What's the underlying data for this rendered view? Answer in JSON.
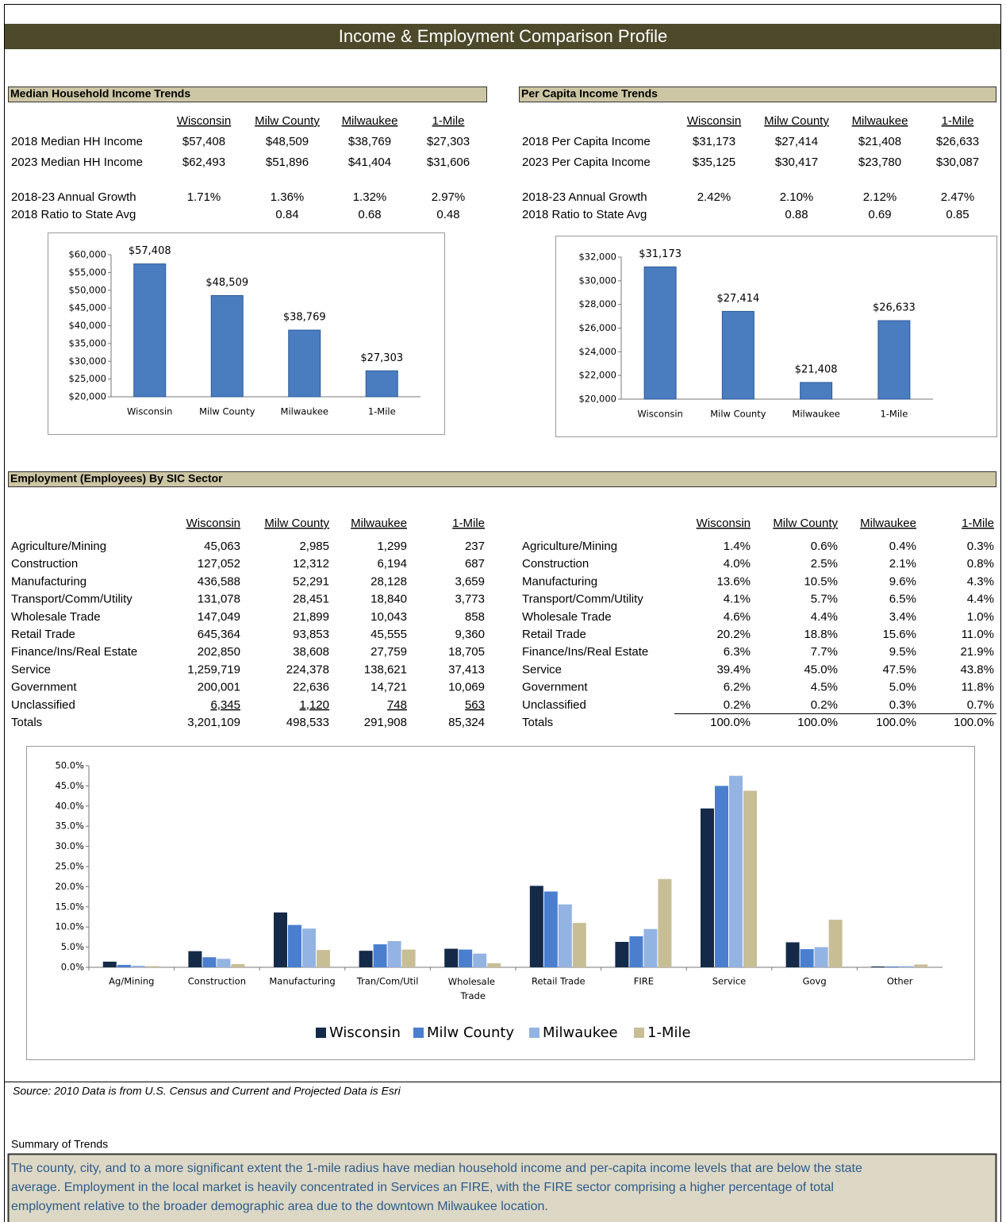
{
  "header": {
    "title": "Income & Employment Comparison Profile"
  },
  "median_hh": {
    "title": "Median Household Income Trends",
    "columns": [
      "Wisconsin",
      "Milw County",
      "Milwaukee",
      "1-Mile"
    ],
    "rows": [
      [
        "2018 Median HH Income",
        "$57,408",
        "$48,509",
        "$38,769",
        "$27,303"
      ],
      [
        "2023 Median HH Income",
        "$62,493",
        "$51,896",
        "$41,404",
        "$31,606"
      ],
      [
        "2018-23 Annual Growth",
        "1.71%",
        "1.36%",
        "1.32%",
        "2.97%"
      ],
      [
        "2018 Ratio to State Avg",
        null,
        "0.84",
        "0.68",
        "0.48"
      ]
    ]
  },
  "per_capita": {
    "title": "Per Capita Income Trends",
    "columns": [
      "Wisconsin",
      "Milw County",
      "Milwaukee",
      "1-Mile"
    ],
    "rows": [
      [
        "2018 Per Capita Income",
        "$31,173",
        "$27,414",
        "$21,408",
        "$26,633"
      ],
      [
        "2023 Per Capita Income",
        "$35,125",
        "$30,417",
        "$23,780",
        "$30,087"
      ],
      [
        "2018-23 Annual Growth",
        "2.42%",
        "2.10%",
        "2.12%",
        "2.47%"
      ],
      [
        "2018 Ratio to State Avg",
        null,
        "0.88",
        "0.69",
        "0.85"
      ]
    ]
  },
  "employment": {
    "title": "Employment (Employees) By SIC Sector",
    "columns": [
      "Wisconsin",
      "Milw County",
      "Milwaukee",
      "1-Mile"
    ],
    "counts": [
      [
        "Agriculture/Mining",
        "45,063",
        "2,985",
        "1,299",
        "237"
      ],
      [
        "Construction",
        "127,052",
        "12,312",
        "6,194",
        "687"
      ],
      [
        "Manufacturing",
        "436,588",
        "52,291",
        "28,128",
        "3,659"
      ],
      [
        "Transport/Comm/Utility",
        "131,078",
        "28,451",
        "18,840",
        "3,773"
      ],
      [
        "Wholesale Trade",
        "147,049",
        "21,899",
        "10,043",
        "858"
      ],
      [
        "Retail Trade",
        "645,364",
        "93,853",
        "45,555",
        "9,360"
      ],
      [
        "Finance/Ins/Real Estate",
        "202,850",
        "38,608",
        "27,759",
        "18,705"
      ],
      [
        "Service",
        "1,259,719",
        "224,378",
        "138,621",
        "37,413"
      ],
      [
        "Government",
        "200,001",
        "22,636",
        "14,721",
        "10,069"
      ],
      [
        "Unclassified",
        "6,345",
        "1,120",
        "748",
        "563"
      ],
      [
        "Totals",
        "3,201,109",
        "498,533",
        "291,908",
        "85,324"
      ]
    ],
    "shares": [
      [
        "Agriculture/Mining",
        "1.4%",
        "0.6%",
        "0.4%",
        "0.3%"
      ],
      [
        "Construction",
        "4.0%",
        "2.5%",
        "2.1%",
        "0.8%"
      ],
      [
        "Manufacturing",
        "13.6%",
        "10.5%",
        "9.6%",
        "4.3%"
      ],
      [
        "Transport/Comm/Utility",
        "4.1%",
        "5.7%",
        "6.5%",
        "4.4%"
      ],
      [
        "Wholesale Trade",
        "4.6%",
        "4.4%",
        "3.4%",
        "1.0%"
      ],
      [
        "Retail Trade",
        "20.2%",
        "18.8%",
        "15.6%",
        "11.0%"
      ],
      [
        "Finance/Ins/Real Estate",
        "6.3%",
        "7.7%",
        "9.5%",
        "21.9%"
      ],
      [
        "Service",
        "39.4%",
        "45.0%",
        "47.5%",
        "43.8%"
      ],
      [
        "Government",
        "6.2%",
        "4.5%",
        "5.0%",
        "11.8%"
      ],
      [
        "Unclassified",
        "0.2%",
        "0.2%",
        "0.3%",
        "0.7%"
      ],
      [
        "Totals",
        "100.0%",
        "100.0%",
        "100.0%",
        "100.0%"
      ]
    ]
  },
  "chart_data": [
    {
      "type": "bar",
      "categories": [
        "Wisconsin",
        "Milw County",
        "Milwaukee",
        "1-Mile"
      ],
      "values": [
        57408,
        48509,
        38769,
        27303
      ],
      "value_labels": [
        "$57,408",
        "$48,509",
        "$38,769",
        "$27,303"
      ],
      "color": "#4a7cc0",
      "ylim": [
        20000,
        60000
      ],
      "yticks": [
        {
          "value": 20000,
          "label": "$20,000"
        },
        {
          "value": 25000,
          "label": "$25,000"
        },
        {
          "value": 30000,
          "label": "$30,000"
        },
        {
          "value": 35000,
          "label": "$35,000"
        },
        {
          "value": 40000,
          "label": "$40,000"
        },
        {
          "value": 45000,
          "label": "$45,000"
        },
        {
          "value": 50000,
          "label": "$50,000"
        },
        {
          "value": 55000,
          "label": "$55,000"
        },
        {
          "value": 60000,
          "label": "$60,000"
        }
      ],
      "grid": false
    },
    {
      "type": "bar",
      "categories": [
        "Wisconsin",
        "Milw County",
        "Milwaukee",
        "1-Mile"
      ],
      "values": [
        31173,
        27414,
        21408,
        26633
      ],
      "value_labels": [
        "$31,173",
        "$27,414",
        "$21,408",
        "$26,633"
      ],
      "color": "#4a7cc0",
      "ylim": [
        20000,
        32000
      ],
      "yticks": [
        {
          "value": 20000,
          "label": "$20,000"
        },
        {
          "value": 22000,
          "label": "$22,000"
        },
        {
          "value": 24000,
          "label": "$24,000"
        },
        {
          "value": 26000,
          "label": "$26,000"
        },
        {
          "value": 28000,
          "label": "$28,000"
        },
        {
          "value": 30000,
          "label": "$30,000"
        },
        {
          "value": 32000,
          "label": "$32,000"
        }
      ],
      "grid": false
    },
    {
      "type": "grouped_bar",
      "categories": [
        "Ag/Mining",
        "Construction",
        "Manufacturing",
        "Tran/Com/Util",
        "Wholesale Trade",
        "Retail Trade",
        "FIRE",
        "Service",
        "Govg",
        "Other"
      ],
      "series": [
        {
          "name": "Wisconsin",
          "color": "#142a48",
          "values": [
            1.4,
            4.0,
            13.6,
            4.1,
            4.6,
            20.2,
            6.3,
            39.4,
            6.2,
            0.2
          ]
        },
        {
          "name": "Milw County",
          "color": "#4a7fcf",
          "values": [
            0.6,
            2.5,
            10.5,
            5.7,
            4.4,
            18.8,
            7.7,
            45.0,
            4.5,
            0.2
          ]
        },
        {
          "name": "Milwaukee",
          "color": "#93b4e2",
          "values": [
            0.4,
            2.1,
            9.6,
            6.5,
            3.4,
            15.6,
            9.5,
            47.5,
            5.0,
            0.3
          ]
        },
        {
          "name": "1-Mile",
          "color": "#c8be96",
          "values": [
            0.3,
            0.8,
            4.3,
            4.4,
            1.0,
            11.0,
            21.9,
            43.8,
            11.8,
            0.7
          ]
        }
      ],
      "ylim": [
        0,
        50
      ],
      "yticks": [
        {
          "value": 0,
          "label": "0.0%"
        },
        {
          "value": 5,
          "label": "5.0%"
        },
        {
          "value": 10,
          "label": "10.0%"
        },
        {
          "value": 15,
          "label": "15.0%"
        },
        {
          "value": 20,
          "label": "20.0%"
        },
        {
          "value": 25,
          "label": "25.0%"
        },
        {
          "value": 30,
          "label": "30.0%"
        },
        {
          "value": 35,
          "label": "35.0%"
        },
        {
          "value": 40,
          "label": "40.0%"
        },
        {
          "value": 45,
          "label": "45.0%"
        },
        {
          "value": 50,
          "label": "50.0%"
        }
      ],
      "grid": false,
      "legend": "bottom"
    }
  ],
  "source": "Source: 2010 Data is from U.S. Census and Current and Projected Data is Esri",
  "summary": {
    "label": "Summary of Trends",
    "lines": [
      "The county, city, and to a more significant extent the 1-mile radius have median household income and per-capita income levels that are below the state",
      "average. Employment in the local market is heavily concentrated in Services an FIRE, with the FIRE sector comprising a higher percentage of total",
      "employment relative to the broader demographic area due to the downtown Milwaukee location."
    ]
  }
}
